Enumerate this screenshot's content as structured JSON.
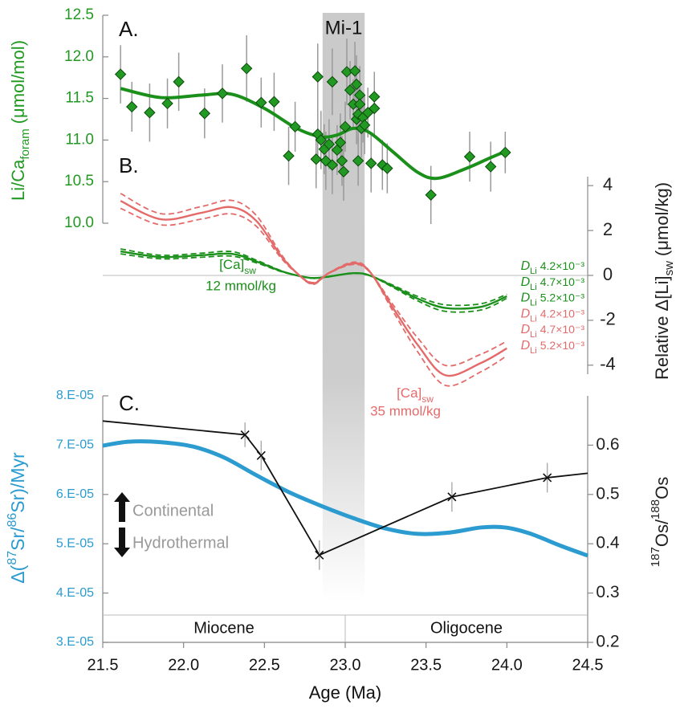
{
  "chart_data": [
    {
      "type": "scatter",
      "panel_label": "A.",
      "ylabel": {
        "main": "Li/Ca",
        "sub": "foram",
        "unit": "(μmol/mol)"
      },
      "color": "#229922",
      "fit_color": "#1a8f1a",
      "xlim": [
        21.5,
        24.5
      ],
      "ylim": [
        10.0,
        12.5
      ],
      "yticks": [
        {
          "value": 10,
          "label": "10.0"
        },
        10.5,
        {
          "value": 11,
          "label": "11.0"
        },
        11.5,
        {
          "value": 12,
          "label": "12.0"
        },
        12.5
      ],
      "band": {
        "label": "Mi-1",
        "range": [
          22.86,
          23.12
        ]
      },
      "x": [
        21.61,
        21.68,
        21.79,
        21.9,
        21.97,
        22.13,
        22.24,
        22.39,
        22.48,
        22.56,
        22.65,
        22.69,
        22.82,
        22.83,
        22.83,
        22.85,
        22.87,
        22.88,
        22.9,
        22.92,
        22.92,
        22.95,
        22.97,
        22.98,
        22.99,
        23.0,
        23.01,
        23.03,
        23.05,
        23.06,
        23.07,
        23.07,
        23.08,
        23.08,
        23.09,
        23.09,
        23.1,
        23.11,
        23.12,
        23.14,
        23.16,
        23.18,
        23.18,
        23.23,
        23.26,
        23.53,
        23.77,
        23.9,
        23.99
      ],
      "values": [
        11.79,
        11.4,
        11.33,
        11.44,
        11.7,
        11.32,
        11.56,
        11.86,
        11.45,
        11.46,
        10.81,
        11.16,
        10.77,
        11.76,
        11.07,
        11.0,
        10.89,
        10.75,
        10.95,
        10.7,
        11.7,
        10.88,
        10.97,
        10.75,
        10.62,
        11.16,
        11.82,
        11.6,
        11.43,
        11.83,
        11.67,
        11.25,
        11.31,
        10.75,
        11.54,
        11.43,
        11.14,
        11.27,
        11.18,
        11.33,
        10.72,
        11.52,
        11.38,
        10.7,
        10.66,
        10.34,
        10.8,
        10.68,
        10.85
      ],
      "errors": [
        0.35,
        0.3,
        0.35,
        0.3,
        0.35,
        0.3,
        0.35,
        0.4,
        0.3,
        0.35,
        0.35,
        0.3,
        0.35,
        0.4,
        0.3,
        0.35,
        0.3,
        0.35,
        0.3,
        0.35,
        0.4,
        0.3,
        0.35,
        0.3,
        0.35,
        0.3,
        0.4,
        0.35,
        0.3,
        0.35,
        0.35,
        0.3,
        0.35,
        0.3,
        0.35,
        0.3,
        0.35,
        0.3,
        0.35,
        0.3,
        0.35,
        0.3,
        0.35,
        0.3,
        0.3,
        0.35,
        0.3,
        0.3,
        0.25
      ],
      "fit": {
        "x": [
          21.61,
          21.86,
          22.11,
          22.3,
          22.5,
          22.7,
          22.85,
          22.95,
          23.05,
          23.15,
          23.3,
          23.45,
          23.57,
          23.75,
          23.89,
          24.0
        ],
        "values": [
          11.62,
          11.51,
          11.54,
          11.55,
          11.38,
          11.14,
          11.04,
          11.06,
          11.14,
          11.09,
          10.85,
          10.61,
          10.54,
          10.66,
          10.78,
          10.87
        ]
      }
    },
    {
      "type": "line",
      "panel_label": "B.",
      "ylabel": {
        "main": "Relative Δ[Li]",
        "sub": "sw",
        "unit": "(μmol/kg)"
      },
      "xlim": [
        21.5,
        24.5
      ],
      "ylim": [
        -4.4,
        4.4
      ],
      "yticks": [
        4,
        2,
        0,
        -2,
        -4
      ],
      "symbol": "D",
      "symbol_sub": "Li",
      "x": [
        21.61,
        21.86,
        22.11,
        22.3,
        22.45,
        22.6,
        22.7,
        22.8,
        22.9,
        23.05,
        23.15,
        23.3,
        23.45,
        23.62,
        23.84,
        24.0
      ],
      "series": [
        {
          "name": "4.2×10⁻³",
          "color": "#1a8f1a",
          "dash": true,
          "values": [
            0.96,
            0.74,
            0.81,
            0.86,
            0.56,
            0.18,
            0,
            -0.11,
            -0.05,
            0.09,
            0,
            -0.45,
            -0.94,
            -1.31,
            -1.26,
            -0.84
          ]
        },
        {
          "name": "4.7×10⁻³",
          "color": "#1a8f1a",
          "dash": false,
          "values": [
            1.07,
            0.82,
            0.9,
            0.96,
            0.62,
            0.2,
            0,
            -0.12,
            -0.05,
            0.1,
            0,
            -0.5,
            -1.04,
            -1.45,
            -1.4,
            -0.93
          ]
        },
        {
          "name": "5.2×10⁻³",
          "color": "#1a8f1a",
          "dash": true,
          "values": [
            1.18,
            0.9,
            0.99,
            1.06,
            0.68,
            0.22,
            0,
            -0.13,
            -0.06,
            0.11,
            0,
            -0.55,
            -1.14,
            -1.6,
            -1.54,
            -1.02
          ]
        },
        {
          "name": "4.2×10⁻³",
          "color": "#e46a6a",
          "dash": true,
          "values": [
            2.99,
            2.25,
            2.51,
            2.74,
            2.19,
            0.8,
            0.1,
            -0.32,
            0.1,
            0.49,
            0.16,
            -1.35,
            -2.8,
            -4.01,
            -3.51,
            -2.93
          ]
        },
        {
          "name": "4.7×10⁻³",
          "color": "#e46a6a",
          "dash": false,
          "values": [
            3.32,
            2.5,
            2.79,
            3.04,
            2.43,
            0.89,
            0.11,
            -0.36,
            0.11,
            0.54,
            0.18,
            -1.5,
            -3.11,
            -4.45,
            -3.9,
            -3.25
          ]
        },
        {
          "name": "5.2×10⁻³",
          "color": "#e46a6a",
          "dash": true,
          "values": [
            3.65,
            2.75,
            3.07,
            3.34,
            2.67,
            0.98,
            0.12,
            -0.4,
            0.12,
            0.59,
            0.2,
            -1.65,
            -3.42,
            -4.9,
            -4.29,
            -3.58
          ]
        }
      ],
      "annotations": [
        {
          "color": "#1a8f1a",
          "label": "[Ca]",
          "label_sub": "sw",
          "text": "12 mmol/kg"
        },
        {
          "color": "#e46a6a",
          "label": "[Ca]",
          "label_sub": "sw",
          "text": "35 mmol/kg"
        }
      ]
    },
    {
      "type": "line",
      "panel_label": "C.",
      "ylabel": {
        "parts": [
          "Δ(",
          "87",
          "Sr/",
          "86",
          "Sr)/Myr"
        ]
      },
      "y2label": {
        "parts": [
          "187",
          "Os/",
          "188",
          "Os"
        ]
      },
      "xlabel": "Age (Ma)",
      "xlim": [
        21.5,
        24.5
      ],
      "xticks": [
        21.5,
        {
          "value": 22,
          "label": "22.0"
        },
        22.5,
        {
          "value": 23,
          "label": "23.0"
        },
        23.5,
        {
          "value": 24,
          "label": "24.0"
        },
        24.5
      ],
      "ylim": [
        3e-05,
        8e-05
      ],
      "yticks": [
        {
          "value": 3e-05,
          "label": "3.E-05"
        },
        {
          "value": 4e-05,
          "label": "4.E-05"
        },
        {
          "value": 5e-05,
          "label": "5.E-05"
        },
        {
          "value": 6e-05,
          "label": "6.E-05"
        },
        {
          "value": 7e-05,
          "label": "7.E-05"
        },
        {
          "value": 8e-05,
          "label": "8.E-05"
        }
      ],
      "y2lim": [
        0.2,
        0.7
      ],
      "y2ticks": [
        0.2,
        0.3,
        0.4,
        0.5,
        0.6
      ],
      "series": [
        {
          "color": "#2b9bd0",
          "axis": "y",
          "x": [
            21.5,
            21.66,
            21.86,
            22.06,
            22.25,
            22.45,
            22.65,
            22.85,
            23.05,
            23.25,
            23.45,
            23.65,
            23.84,
            23.99,
            24.14,
            24.34,
            24.5
          ],
          "values": [
            6.99e-05,
            7.07e-05,
            7.06e-05,
            6.97e-05,
            6.75e-05,
            6.39e-05,
            6.05e-05,
            5.77e-05,
            5.52e-05,
            5.31e-05,
            5.2e-05,
            5.23e-05,
            5.33e-05,
            5.33e-05,
            5.21e-05,
            4.95e-05,
            4.76e-05
          ]
        },
        {
          "color": "#111111",
          "axis": "y2",
          "x": [
            21.5,
            22.38,
            22.48,
            22.84,
            23.66,
            24.25,
            24.5
          ],
          "values": [
            0.649,
            0.621,
            0.579,
            0.377,
            0.495,
            0.534,
            0.543
          ],
          "errors": [
            null,
            0.025,
            0.03,
            0.03,
            0.03,
            0.03,
            null
          ]
        }
      ],
      "notes": [
        "Continental",
        "Hydrothermal"
      ],
      "epochs": [
        {
          "label": "Miocene",
          "range": [
            21.5,
            23.0
          ]
        },
        {
          "label": "Oligocene",
          "range": [
            23.0,
            24.5
          ]
        }
      ]
    }
  ]
}
